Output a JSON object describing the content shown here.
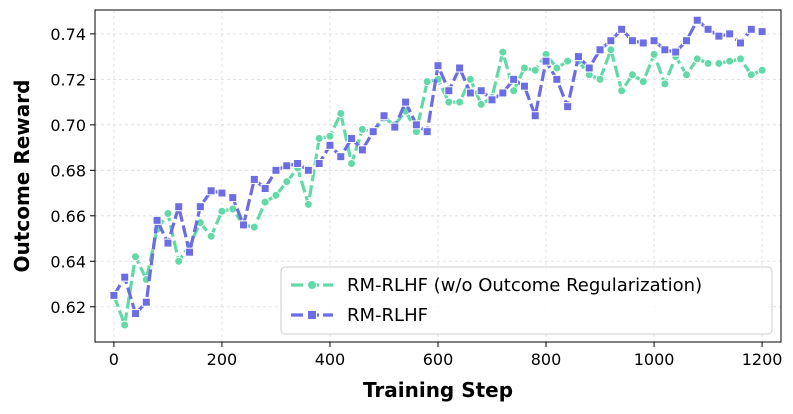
{
  "chart_data": {
    "type": "line",
    "title": "",
    "xlabel": "Training Step",
    "ylabel": "Outcome Reward",
    "xlim": [
      -35,
      1235
    ],
    "ylim": [
      0.6045,
      0.7505
    ],
    "xticks": [
      0,
      200,
      400,
      600,
      800,
      1000,
      1200
    ],
    "yticks": [
      0.62,
      0.64,
      0.66,
      0.68,
      0.7,
      0.72,
      0.74
    ],
    "xtick_labels": [
      "0",
      "200",
      "400",
      "600",
      "800",
      "1000",
      "1200"
    ],
    "ytick_labels": [
      "0.62",
      "0.64",
      "0.66",
      "0.68",
      "0.70",
      "0.72",
      "0.74"
    ],
    "grid": true,
    "legend_position": "lower-right",
    "x": [
      0,
      20,
      40,
      60,
      80,
      100,
      120,
      140,
      160,
      180,
      200,
      220,
      240,
      260,
      280,
      300,
      320,
      340,
      360,
      380,
      400,
      420,
      440,
      460,
      480,
      500,
      520,
      540,
      560,
      580,
      600,
      620,
      640,
      660,
      680,
      700,
      720,
      740,
      760,
      780,
      800,
      820,
      840,
      860,
      880,
      900,
      920,
      940,
      960,
      980,
      1000,
      1020,
      1040,
      1060,
      1080,
      1100,
      1120,
      1140,
      1160,
      1180,
      1200
    ],
    "series": [
      {
        "name": "RM-RLHF (w/o Outcome Regularization)",
        "color": "#62d9a7",
        "marker": "circle",
        "values": [
          0.625,
          0.612,
          0.642,
          0.632,
          0.654,
          0.661,
          0.64,
          0.647,
          0.657,
          0.651,
          0.662,
          0.663,
          0.656,
          0.655,
          0.666,
          0.669,
          0.675,
          0.681,
          0.665,
          0.694,
          0.695,
          0.705,
          0.683,
          0.698,
          0.697,
          0.703,
          0.7,
          0.706,
          0.697,
          0.719,
          0.72,
          0.71,
          0.71,
          0.72,
          0.709,
          0.712,
          0.732,
          0.715,
          0.725,
          0.724,
          0.731,
          0.725,
          0.728,
          0.728,
          0.722,
          0.72,
          0.733,
          0.715,
          0.722,
          0.719,
          0.731,
          0.718,
          0.73,
          0.722,
          0.729,
          0.727,
          0.727,
          0.728,
          0.729,
          0.722,
          0.724
        ]
      },
      {
        "name": "RM-RLHF",
        "color": "#6c6ce5",
        "marker": "square",
        "values": [
          0.625,
          0.633,
          0.617,
          0.622,
          0.658,
          0.648,
          0.664,
          0.644,
          0.664,
          0.671,
          0.67,
          0.668,
          0.656,
          0.676,
          0.672,
          0.68,
          0.682,
          0.683,
          0.68,
          0.683,
          0.691,
          0.686,
          0.694,
          0.689,
          0.697,
          0.704,
          0.699,
          0.71,
          0.7,
          0.697,
          0.726,
          0.715,
          0.725,
          0.714,
          0.715,
          0.711,
          0.714,
          0.72,
          0.717,
          0.704,
          0.728,
          0.72,
          0.708,
          0.73,
          0.725,
          0.733,
          0.737,
          0.742,
          0.737,
          0.736,
          0.737,
          0.733,
          0.732,
          0.737,
          0.746,
          0.742,
          0.739,
          0.74,
          0.736,
          0.742,
          0.741
        ]
      }
    ]
  }
}
